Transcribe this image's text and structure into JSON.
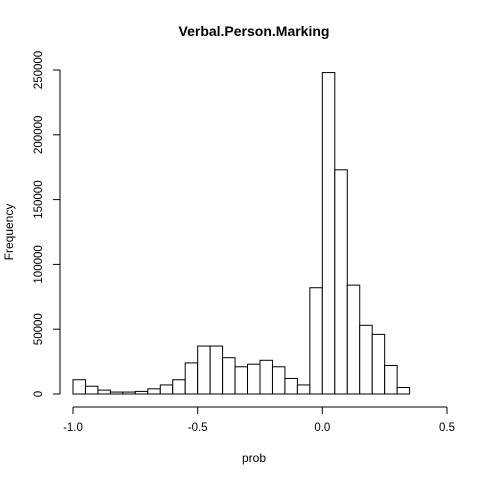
{
  "chart_data": {
    "type": "bar",
    "title": "Verbal.Person.Marking",
    "xlabel": "prob",
    "ylabel": "Frequency",
    "bin_width": 0.05,
    "bin_start": -1.0,
    "values": [
      11000,
      6000,
      3000,
      1500,
      1500,
      2000,
      4000,
      7000,
      11000,
      24000,
      37000,
      37000,
      28000,
      21000,
      23000,
      26000,
      21000,
      12000,
      7000,
      82000,
      248000,
      173000,
      84000,
      53000,
      46000,
      22000,
      5000
    ],
    "xlim": [
      -1.0,
      0.5
    ],
    "ylim": [
      0,
      250000
    ],
    "x_ticks": [
      "-1.0",
      "-0.5",
      "0.0",
      "0.5"
    ],
    "y_ticks": [
      "0",
      "50000",
      "100000",
      "150000",
      "200000",
      "250000"
    ],
    "grid": false,
    "legend": false
  }
}
